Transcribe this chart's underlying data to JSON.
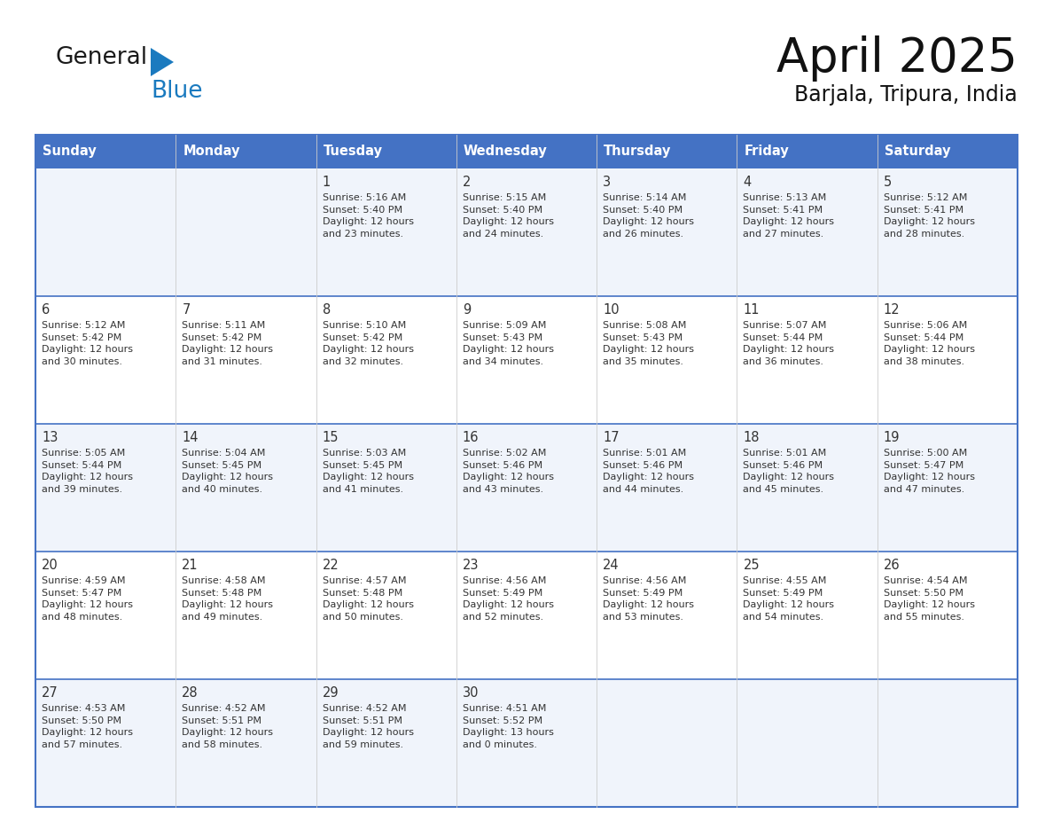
{
  "title": "April 2025",
  "subtitle": "Barjala, Tripura, India",
  "days_of_week": [
    "Sunday",
    "Monday",
    "Tuesday",
    "Wednesday",
    "Thursday",
    "Friday",
    "Saturday"
  ],
  "header_bg": "#4472C4",
  "header_text": "#FFFFFF",
  "row_bg_odd": "#F0F4FB",
  "row_bg_even": "#FFFFFF",
  "border_color": "#4472C4",
  "separator_color": "#4472C4",
  "col_sep_color": "#CCCCCC",
  "text_color": "#333333",
  "calendar_data": [
    [
      "",
      "",
      "1\nSunrise: 5:16 AM\nSunset: 5:40 PM\nDaylight: 12 hours\nand 23 minutes.",
      "2\nSunrise: 5:15 AM\nSunset: 5:40 PM\nDaylight: 12 hours\nand 24 minutes.",
      "3\nSunrise: 5:14 AM\nSunset: 5:40 PM\nDaylight: 12 hours\nand 26 minutes.",
      "4\nSunrise: 5:13 AM\nSunset: 5:41 PM\nDaylight: 12 hours\nand 27 minutes.",
      "5\nSunrise: 5:12 AM\nSunset: 5:41 PM\nDaylight: 12 hours\nand 28 minutes."
    ],
    [
      "6\nSunrise: 5:12 AM\nSunset: 5:42 PM\nDaylight: 12 hours\nand 30 minutes.",
      "7\nSunrise: 5:11 AM\nSunset: 5:42 PM\nDaylight: 12 hours\nand 31 minutes.",
      "8\nSunrise: 5:10 AM\nSunset: 5:42 PM\nDaylight: 12 hours\nand 32 minutes.",
      "9\nSunrise: 5:09 AM\nSunset: 5:43 PM\nDaylight: 12 hours\nand 34 minutes.",
      "10\nSunrise: 5:08 AM\nSunset: 5:43 PM\nDaylight: 12 hours\nand 35 minutes.",
      "11\nSunrise: 5:07 AM\nSunset: 5:44 PM\nDaylight: 12 hours\nand 36 minutes.",
      "12\nSunrise: 5:06 AM\nSunset: 5:44 PM\nDaylight: 12 hours\nand 38 minutes."
    ],
    [
      "13\nSunrise: 5:05 AM\nSunset: 5:44 PM\nDaylight: 12 hours\nand 39 minutes.",
      "14\nSunrise: 5:04 AM\nSunset: 5:45 PM\nDaylight: 12 hours\nand 40 minutes.",
      "15\nSunrise: 5:03 AM\nSunset: 5:45 PM\nDaylight: 12 hours\nand 41 minutes.",
      "16\nSunrise: 5:02 AM\nSunset: 5:46 PM\nDaylight: 12 hours\nand 43 minutes.",
      "17\nSunrise: 5:01 AM\nSunset: 5:46 PM\nDaylight: 12 hours\nand 44 minutes.",
      "18\nSunrise: 5:01 AM\nSunset: 5:46 PM\nDaylight: 12 hours\nand 45 minutes.",
      "19\nSunrise: 5:00 AM\nSunset: 5:47 PM\nDaylight: 12 hours\nand 47 minutes."
    ],
    [
      "20\nSunrise: 4:59 AM\nSunset: 5:47 PM\nDaylight: 12 hours\nand 48 minutes.",
      "21\nSunrise: 4:58 AM\nSunset: 5:48 PM\nDaylight: 12 hours\nand 49 minutes.",
      "22\nSunrise: 4:57 AM\nSunset: 5:48 PM\nDaylight: 12 hours\nand 50 minutes.",
      "23\nSunrise: 4:56 AM\nSunset: 5:49 PM\nDaylight: 12 hours\nand 52 minutes.",
      "24\nSunrise: 4:56 AM\nSunset: 5:49 PM\nDaylight: 12 hours\nand 53 minutes.",
      "25\nSunrise: 4:55 AM\nSunset: 5:49 PM\nDaylight: 12 hours\nand 54 minutes.",
      "26\nSunrise: 4:54 AM\nSunset: 5:50 PM\nDaylight: 12 hours\nand 55 minutes."
    ],
    [
      "27\nSunrise: 4:53 AM\nSunset: 5:50 PM\nDaylight: 12 hours\nand 57 minutes.",
      "28\nSunrise: 4:52 AM\nSunset: 5:51 PM\nDaylight: 12 hours\nand 58 minutes.",
      "29\nSunrise: 4:52 AM\nSunset: 5:51 PM\nDaylight: 12 hours\nand 59 minutes.",
      "30\nSunrise: 4:51 AM\nSunset: 5:52 PM\nDaylight: 13 hours\nand 0 minutes.",
      "",
      "",
      ""
    ]
  ],
  "logo_text_general": "General",
  "logo_text_blue": "Blue",
  "logo_color_general": "#1a1a1a",
  "logo_color_blue": "#1a7abf",
  "logo_triangle_color": "#1a7abf"
}
